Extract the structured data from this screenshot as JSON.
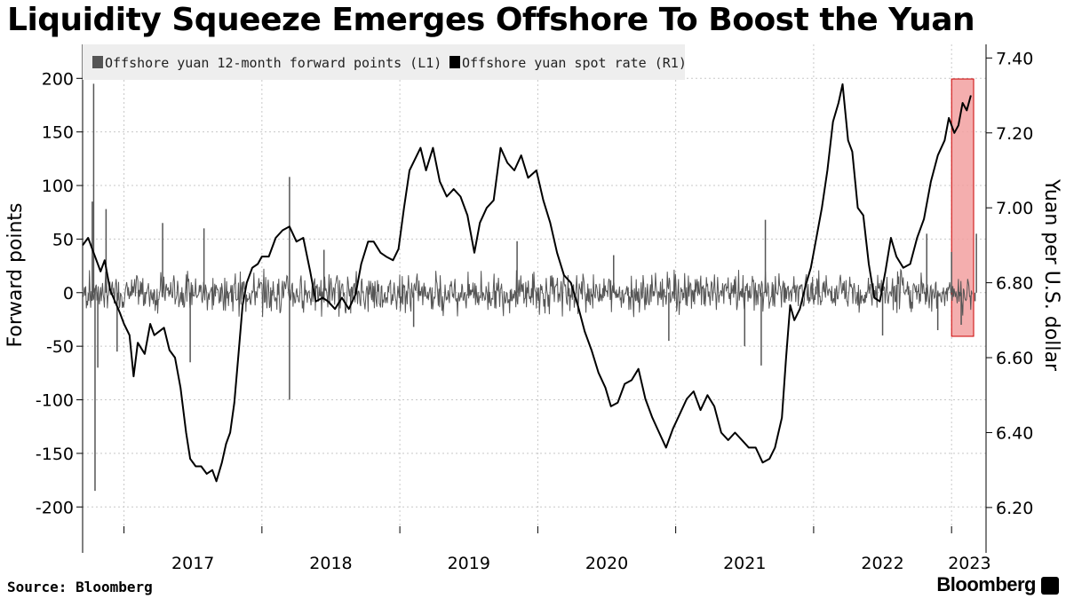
{
  "title": "Liquidity Squeeze Emerges Offshore To Boost the Yuan",
  "source": "Source: Bloomberg",
  "brand": "Bloomberg",
  "chart_data": {
    "type": "line",
    "left_axis": {
      "label": "Forward points",
      "ticks": [
        "200",
        "150",
        "100",
        "50",
        "0",
        "-50",
        "-100",
        "-150",
        "-200"
      ],
      "range": [
        -218,
        240
      ]
    },
    "right_axis": {
      "label": "Yuan per U.S. dollar",
      "ticks": [
        "7.40",
        "7.20",
        "7.00",
        "6.80",
        "6.60",
        "6.40",
        "6.20"
      ],
      "range": [
        6.15,
        7.46
      ]
    },
    "x_ticks": [
      "2017",
      "2018",
      "2019",
      "2020",
      "2021",
      "2022",
      "2023"
    ],
    "x_range": [
      2016.7,
      2023.25
    ],
    "grid": true,
    "legend_position": "top-left",
    "series": [
      {
        "name": "Offshore yuan 12-month forward points (L1)",
        "axis": "left",
        "color": "#555555",
        "baseline": 0,
        "spikes": [
          [
            2016.78,
            195
          ],
          [
            2016.79,
            -185
          ],
          [
            2016.81,
            -70
          ],
          [
            2016.77,
            85
          ],
          [
            2016.87,
            78
          ],
          [
            2016.95,
            -55
          ],
          [
            2017.28,
            65
          ],
          [
            2017.48,
            -65
          ],
          [
            2017.58,
            60
          ],
          [
            2018.2,
            108
          ],
          [
            2018.2,
            -100
          ],
          [
            2018.45,
            40
          ],
          [
            2019.1,
            -32
          ],
          [
            2019.85,
            48
          ],
          [
            2020.55,
            35
          ],
          [
            2020.95,
            -45
          ],
          [
            2021.5,
            -50
          ],
          [
            2021.65,
            68
          ],
          [
            2021.62,
            -68
          ],
          [
            2022.5,
            -40
          ],
          [
            2022.82,
            55
          ],
          [
            2022.9,
            -35
          ],
          [
            2023.0,
            38
          ],
          [
            2023.07,
            -30
          ],
          [
            2023.18,
            55
          ],
          [
            2023.17,
            -8
          ]
        ],
        "noise_amplitude": 18
      },
      {
        "name": "Offshore yuan spot rate (R1)",
        "axis": "right",
        "color": "#000000",
        "points": [
          [
            2016.7,
            6.9
          ],
          [
            2016.74,
            6.92
          ],
          [
            2016.78,
            6.88
          ],
          [
            2016.83,
            6.83
          ],
          [
            2016.86,
            6.86
          ],
          [
            2016.9,
            6.78
          ],
          [
            2016.97,
            6.72
          ],
          [
            2017.0,
            6.69
          ],
          [
            2017.04,
            6.66
          ],
          [
            2017.07,
            6.55
          ],
          [
            2017.1,
            6.64
          ],
          [
            2017.15,
            6.61
          ],
          [
            2017.19,
            6.69
          ],
          [
            2017.22,
            6.66
          ],
          [
            2017.29,
            6.68
          ],
          [
            2017.33,
            6.62
          ],
          [
            2017.37,
            6.6
          ],
          [
            2017.41,
            6.52
          ],
          [
            2017.45,
            6.4
          ],
          [
            2017.48,
            6.33
          ],
          [
            2017.52,
            6.31
          ],
          [
            2017.56,
            6.31
          ],
          [
            2017.6,
            6.29
          ],
          [
            2017.64,
            6.3
          ],
          [
            2017.67,
            6.27
          ],
          [
            2017.71,
            6.32
          ],
          [
            2017.74,
            6.37
          ],
          [
            2017.77,
            6.4
          ],
          [
            2017.8,
            6.48
          ],
          [
            2017.83,
            6.61
          ],
          [
            2017.86,
            6.74
          ],
          [
            2017.89,
            6.8
          ],
          [
            2017.93,
            6.84
          ],
          [
            2017.97,
            6.85
          ],
          [
            2018.0,
            6.87
          ],
          [
            2018.05,
            6.87
          ],
          [
            2018.1,
            6.92
          ],
          [
            2018.15,
            6.94
          ],
          [
            2018.2,
            6.95
          ],
          [
            2018.25,
            6.91
          ],
          [
            2018.3,
            6.92
          ],
          [
            2018.35,
            6.83
          ],
          [
            2018.39,
            6.75
          ],
          [
            2018.44,
            6.76
          ],
          [
            2018.48,
            6.75
          ],
          [
            2018.53,
            6.73
          ],
          [
            2018.58,
            6.76
          ],
          [
            2018.63,
            6.73
          ],
          [
            2018.68,
            6.77
          ],
          [
            2018.72,
            6.85
          ],
          [
            2018.77,
            6.91
          ],
          [
            2018.81,
            6.91
          ],
          [
            2018.86,
            6.88
          ],
          [
            2018.9,
            6.87
          ],
          [
            2018.95,
            6.86
          ],
          [
            2018.99,
            6.89
          ],
          [
            2019.03,
            7.0
          ],
          [
            2019.07,
            7.1
          ],
          [
            2019.11,
            7.13
          ],
          [
            2019.15,
            7.16
          ],
          [
            2019.19,
            7.1
          ],
          [
            2019.24,
            7.16
          ],
          [
            2019.29,
            7.07
          ],
          [
            2019.34,
            7.03
          ],
          [
            2019.39,
            7.05
          ],
          [
            2019.44,
            7.03
          ],
          [
            2019.49,
            6.98
          ],
          [
            2019.54,
            6.88
          ],
          [
            2019.58,
            6.96
          ],
          [
            2019.63,
            7.0
          ],
          [
            2019.68,
            7.02
          ],
          [
            2019.73,
            7.16
          ],
          [
            2019.78,
            7.12
          ],
          [
            2019.83,
            7.1
          ],
          [
            2019.88,
            7.14
          ],
          [
            2019.93,
            7.08
          ],
          [
            2019.99,
            7.1
          ],
          [
            2020.04,
            7.02
          ],
          [
            2020.09,
            6.96
          ],
          [
            2020.14,
            6.88
          ],
          [
            2020.19,
            6.82
          ],
          [
            2020.24,
            6.8
          ],
          [
            2020.29,
            6.74
          ],
          [
            2020.34,
            6.67
          ],
          [
            2020.39,
            6.62
          ],
          [
            2020.44,
            6.56
          ],
          [
            2020.49,
            6.52
          ],
          [
            2020.53,
            6.47
          ],
          [
            2020.58,
            6.48
          ],
          [
            2020.63,
            6.53
          ],
          [
            2020.68,
            6.54
          ],
          [
            2020.73,
            6.57
          ],
          [
            2020.78,
            6.49
          ],
          [
            2020.83,
            6.44
          ],
          [
            2020.88,
            6.4
          ],
          [
            2020.93,
            6.36
          ],
          [
            2020.98,
            6.41
          ],
          [
            2021.03,
            6.45
          ],
          [
            2021.08,
            6.49
          ],
          [
            2021.13,
            6.51
          ],
          [
            2021.18,
            6.46
          ],
          [
            2021.23,
            6.5
          ],
          [
            2021.28,
            6.47
          ],
          [
            2021.33,
            6.4
          ],
          [
            2021.38,
            6.38
          ],
          [
            2021.43,
            6.4
          ],
          [
            2021.48,
            6.38
          ],
          [
            2021.53,
            6.36
          ],
          [
            2021.58,
            6.36
          ],
          [
            2021.63,
            6.32
          ],
          [
            2021.68,
            6.33
          ],
          [
            2021.72,
            6.36
          ],
          [
            2021.77,
            6.44
          ],
          [
            2021.8,
            6.6
          ],
          [
            2021.83,
            6.74
          ],
          [
            2021.86,
            6.7
          ],
          [
            2021.9,
            6.73
          ],
          [
            2021.94,
            6.79
          ],
          [
            2021.98,
            6.84
          ],
          [
            2022.02,
            6.92
          ],
          [
            2022.06,
            7.0
          ],
          [
            2022.1,
            7.1
          ],
          [
            2022.14,
            7.23
          ],
          [
            2022.18,
            7.28
          ],
          [
            2022.21,
            7.33
          ],
          [
            2022.25,
            7.18
          ],
          [
            2022.28,
            7.15
          ],
          [
            2022.32,
            7.0
          ],
          [
            2022.36,
            6.98
          ],
          [
            2022.4,
            6.85
          ],
          [
            2022.44,
            6.76
          ],
          [
            2022.48,
            6.75
          ],
          [
            2022.52,
            6.83
          ],
          [
            2022.56,
            6.92
          ],
          [
            2022.6,
            6.87
          ],
          [
            2022.65,
            6.84
          ],
          [
            2022.7,
            6.85
          ],
          [
            2022.75,
            6.92
          ],
          [
            2022.8,
            6.97
          ],
          [
            2022.85,
            7.07
          ],
          [
            2022.9,
            7.14
          ],
          [
            2022.95,
            7.18
          ],
          [
            2022.98,
            7.24
          ],
          [
            2023.02,
            7.2
          ],
          [
            2023.05,
            7.22
          ],
          [
            2023.08,
            7.28
          ],
          [
            2023.11,
            7.26
          ],
          [
            2023.14,
            7.3
          ]
        ]
      }
    ],
    "highlight": {
      "x_range": [
        2023.0,
        2023.16
      ],
      "color": "#f2a0a0",
      "border": "#cc0000"
    }
  }
}
